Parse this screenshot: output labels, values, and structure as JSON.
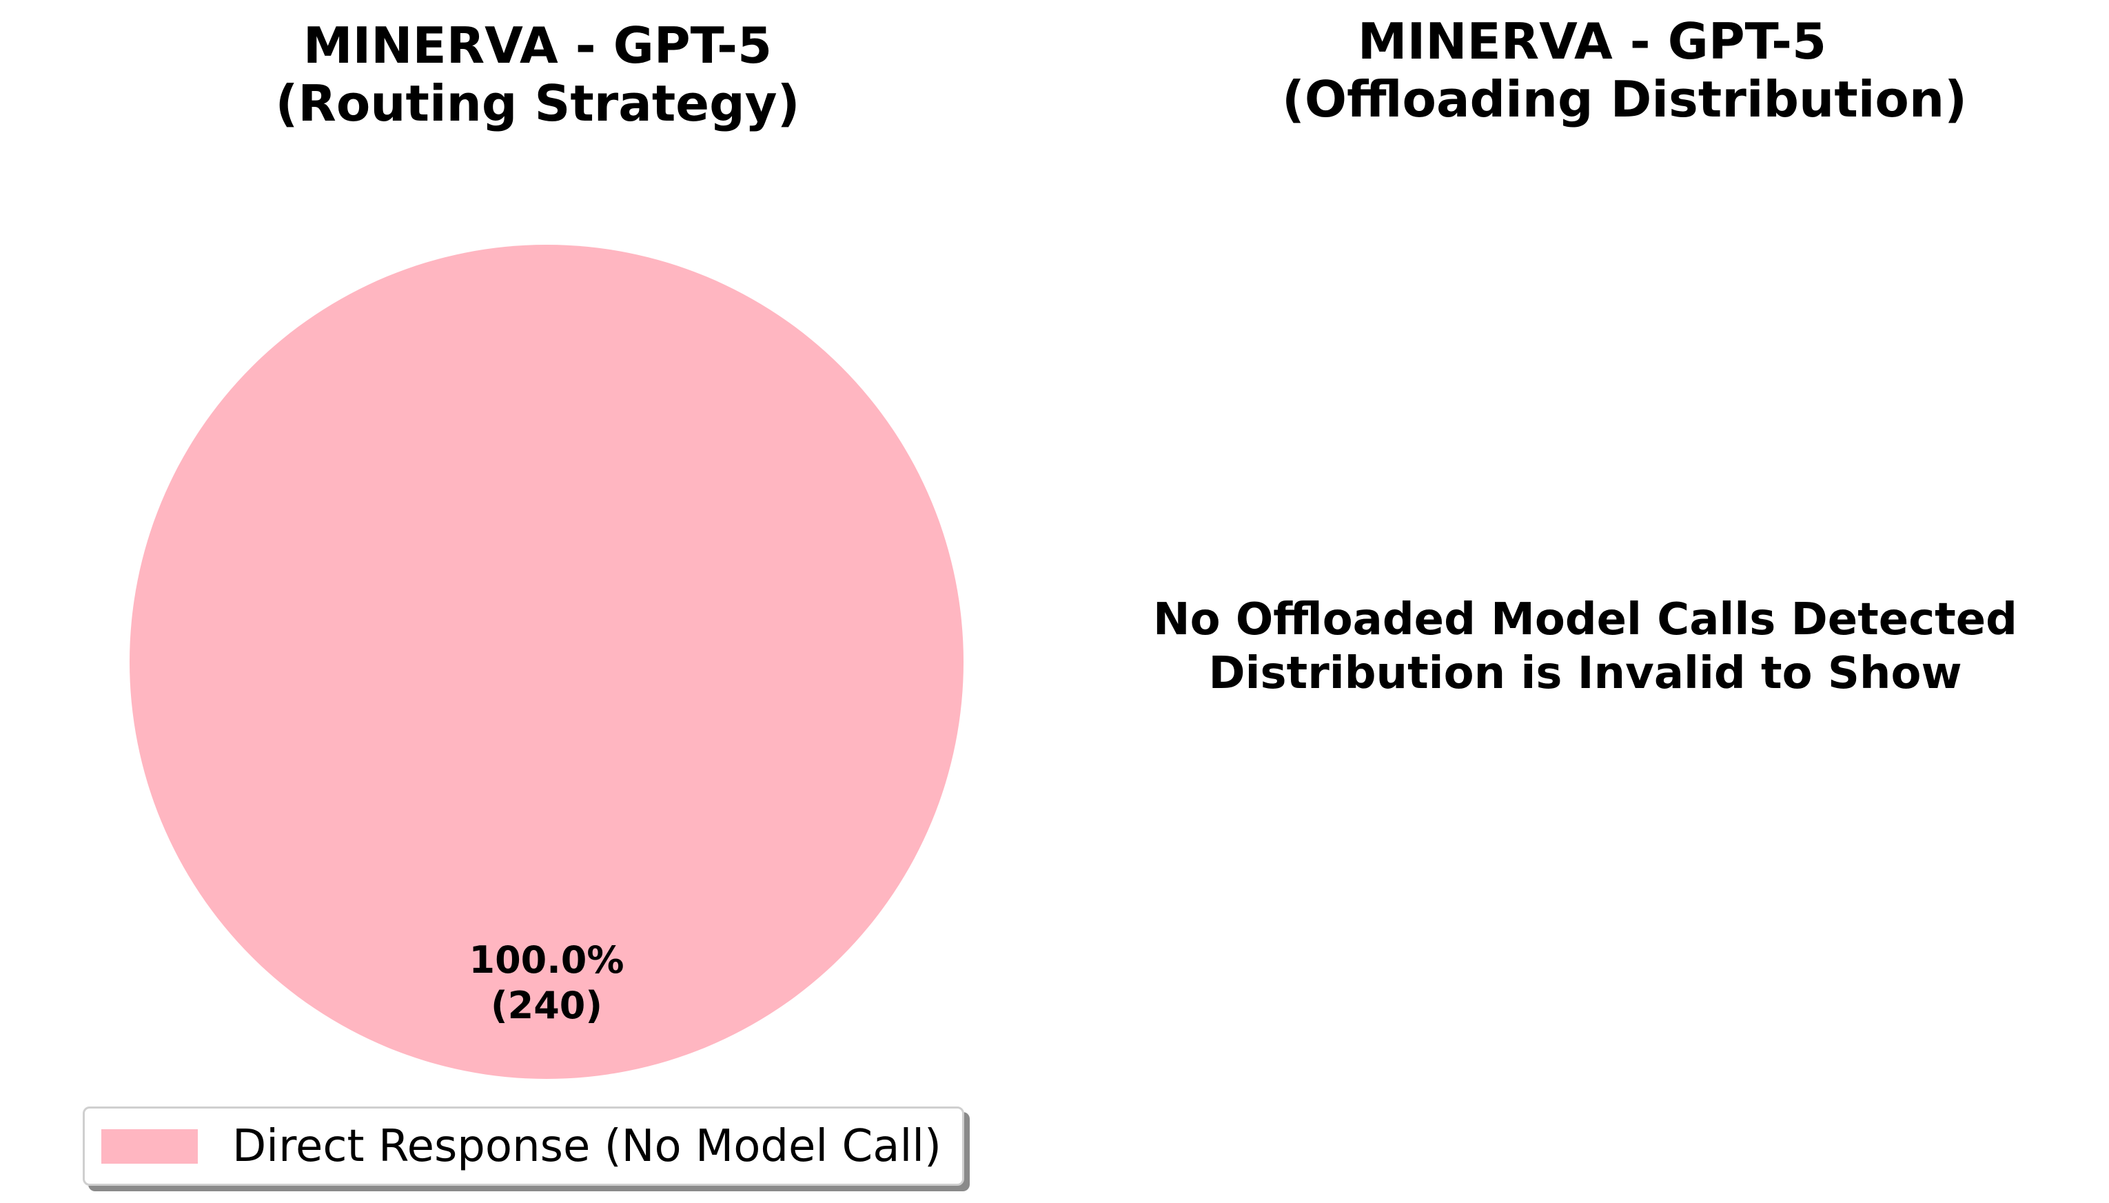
{
  "chart_data": [
    {
      "type": "pie",
      "title": [
        "MINERVA - GPT-5",
        "(Routing Strategy)"
      ],
      "slices": [
        {
          "label": "Direct Response (No Model Call)",
          "value": 240,
          "percent_label": "100.0%",
          "count_label": "(240)",
          "color": "#ffb6c1"
        }
      ],
      "legend_placement": "bottom"
    },
    {
      "type": "pie",
      "title": [
        "MINERVA - GPT-5",
        "(Offloading Distribution)"
      ],
      "slices": [],
      "message": [
        "No Offloaded Model Calls Detected",
        "Distribution is Invalid to Show"
      ]
    }
  ]
}
